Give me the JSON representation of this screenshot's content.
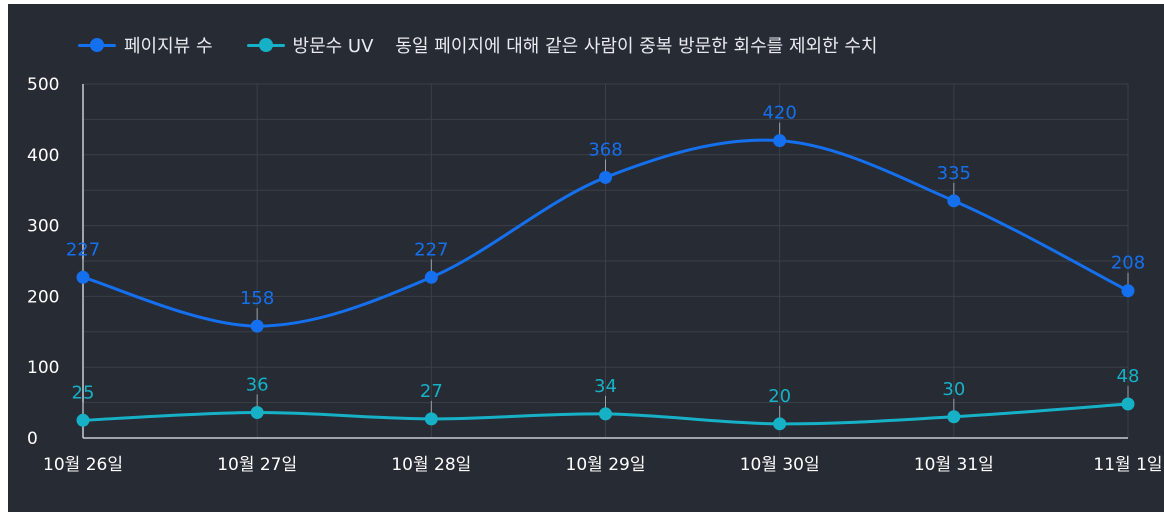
{
  "chart_data": {
    "type": "line",
    "categories": [
      "10월 26일",
      "10월 27일",
      "10월 28일",
      "10월 29일",
      "10월 30일",
      "10월 31일",
      "11월 1일"
    ],
    "series": [
      {
        "name": "페이지뷰 수",
        "values": [
          227,
          158,
          227,
          368,
          420,
          335,
          208
        ],
        "color": "#1570ef"
      },
      {
        "name": "방문수 UV",
        "values": [
          25,
          36,
          27,
          34,
          20,
          30,
          48
        ],
        "color": "#17b1c7"
      }
    ],
    "legend_note": "동일 페이지에 대해 같은 사람이 중복 방문한 회수를 제외한 수치",
    "y_ticks": [
      "0",
      "100",
      "200",
      "300",
      "400",
      "500"
    ],
    "ylim": [
      0,
      500
    ],
    "grid": true,
    "legend_position": "top-left",
    "background": "#272b33"
  }
}
